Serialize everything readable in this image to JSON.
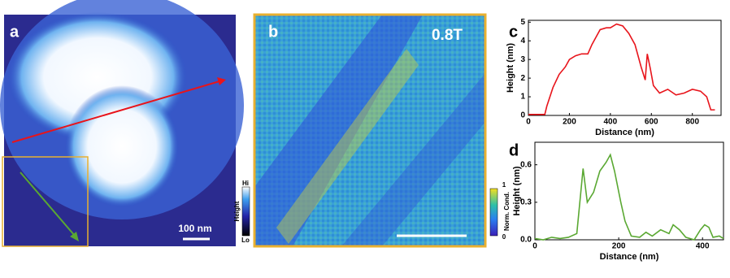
{
  "panels": {
    "a": {
      "label": "a",
      "scale_bar": "100 nm",
      "colorbar_title": "Height",
      "colorbar_max": "Hi",
      "colorbar_min": "Lo"
    },
    "b": {
      "label": "b",
      "field": "0.8T",
      "colorbar_title": "Norm. Cond.",
      "colorbar_max": "1",
      "colorbar_min": "0"
    }
  },
  "chart_data": [
    {
      "type": "line",
      "label": "c",
      "xlabel": "Distance (nm)",
      "ylabel": "Height (nm)",
      "xlim": [
        0,
        940
      ],
      "ylim": [
        0,
        5.1
      ],
      "xticks": [
        0,
        200,
        400,
        600,
        800
      ],
      "yticks": [
        0,
        1,
        2,
        3,
        4,
        5
      ],
      "x": [
        0,
        80,
        90,
        120,
        150,
        180,
        200,
        230,
        260,
        290,
        310,
        330,
        350,
        380,
        400,
        430,
        460,
        490,
        520,
        550,
        570,
        580,
        595,
        610,
        640,
        680,
        720,
        760,
        800,
        840,
        870,
        890,
        910
      ],
      "series": [
        {
          "name": "c",
          "color": "#e8141b",
          "values": [
            0.05,
            0.05,
            0.5,
            1.5,
            2.2,
            2.6,
            3.0,
            3.2,
            3.3,
            3.3,
            3.8,
            4.2,
            4.6,
            4.7,
            4.7,
            4.9,
            4.8,
            4.4,
            3.8,
            2.6,
            1.9,
            3.3,
            2.5,
            1.6,
            1.2,
            1.4,
            1.1,
            1.2,
            1.4,
            1.3,
            1.0,
            0.3,
            0.3
          ]
        }
      ]
    },
    {
      "type": "line",
      "label": "d",
      "xlabel": "Distance (nm)",
      "ylabel": "Height (nm)",
      "xlim": [
        0,
        450
      ],
      "ylim": [
        0,
        0.78
      ],
      "xticks": [
        0,
        200,
        400
      ],
      "yticks": [
        {
          "value": 0,
          "label": "0.0"
        },
        {
          "value": 0.3,
          "label": "0.3"
        },
        {
          "value": 0.6,
          "label": "0.6"
        }
      ],
      "x": [
        0,
        20,
        40,
        60,
        80,
        100,
        115,
        125,
        140,
        155,
        170,
        180,
        190,
        205,
        215,
        230,
        250,
        265,
        280,
        300,
        320,
        330,
        345,
        360,
        380,
        395,
        405,
        415,
        425,
        440,
        450
      ],
      "series": [
        {
          "name": "d",
          "color": "#5aa832",
          "values": [
            0.01,
            0.0,
            0.02,
            0.01,
            0.02,
            0.05,
            0.57,
            0.3,
            0.38,
            0.55,
            0.62,
            0.68,
            0.55,
            0.3,
            0.15,
            0.03,
            0.02,
            0.06,
            0.03,
            0.08,
            0.05,
            0.12,
            0.08,
            0.02,
            0.0,
            0.08,
            0.12,
            0.1,
            0.02,
            0.03,
            0.01
          ]
        }
      ]
    }
  ]
}
